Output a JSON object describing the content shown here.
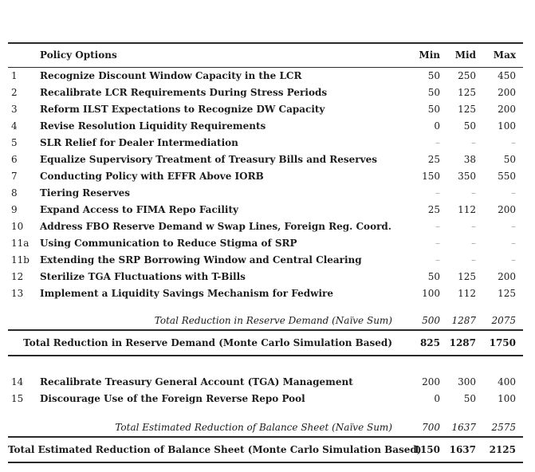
{
  "table": {
    "header": {
      "num": "",
      "label": "Policy Options",
      "min": "Min",
      "mid": "Mid",
      "max": "Max"
    },
    "empty_value": "–",
    "section1": {
      "rows": [
        {
          "num": "1",
          "label": "Recognize Discount Window Capacity in the LCR",
          "min": "50",
          "mid": "250",
          "max": "450"
        },
        {
          "num": "2",
          "label": "Recalibrate LCR Requirements During Stress Periods",
          "min": "50",
          "mid": "125",
          "max": "200"
        },
        {
          "num": "3",
          "label": "Reform ILST Expectations to Recognize DW Capacity",
          "min": "50",
          "mid": "125",
          "max": "200"
        },
        {
          "num": "4",
          "label": "Revise Resolution Liquidity Requirements",
          "min": "0",
          "mid": "50",
          "max": "100"
        },
        {
          "num": "5",
          "label": "SLR Relief for Dealer Intermediation",
          "min": "–",
          "mid": "–",
          "max": "–"
        },
        {
          "num": "6",
          "label": "Equalize Supervisory Treatment of Treasury Bills and Reserves",
          "min": "25",
          "mid": "38",
          "max": "50"
        },
        {
          "num": "7",
          "label": "Conducting Policy with EFFR Above IORB",
          "min": "150",
          "mid": "350",
          "max": "550"
        },
        {
          "num": "8",
          "label": "Tiering Reserves",
          "min": "–",
          "mid": "–",
          "max": "–"
        },
        {
          "num": "9",
          "label": "Expand Access to FIMA Repo Facility",
          "min": "25",
          "mid": "112",
          "max": "200"
        },
        {
          "num": "10",
          "label": "Address FBO Reserve Demand w Swap Lines, Foreign Reg. Coord.",
          "min": "–",
          "mid": "–",
          "max": "–"
        },
        {
          "num": "11a",
          "label": "Using Communication to Reduce Stigma of SRP",
          "min": "–",
          "mid": "–",
          "max": "–"
        },
        {
          "num": "11b",
          "label": "Extending the SRP Borrowing Window and Central Clearing",
          "min": "–",
          "mid": "–",
          "max": "–"
        },
        {
          "num": "12",
          "label": "Sterilize TGA Fluctuations with T-Bills",
          "min": "50",
          "mid": "125",
          "max": "200"
        },
        {
          "num": "13",
          "label": "Implement a Liquidity Savings Mechanism for Fedwire",
          "min": "100",
          "mid": "112",
          "max": "125"
        }
      ],
      "naive_total": {
        "label": "Total Reduction in Reserve Demand (Naïve Sum)",
        "min": "500",
        "mid": "1287",
        "max": "2075"
      },
      "monte_carlo_total": {
        "label": "Total Reduction in Reserve Demand (Monte Carlo Simulation Based)",
        "min": "825",
        "mid": "1287",
        "max": "1750"
      }
    },
    "section2": {
      "rows": [
        {
          "num": "14",
          "label": "Recalibrate Treasury General Account (TGA) Management",
          "min": "200",
          "mid": "300",
          "max": "400"
        },
        {
          "num": "15",
          "label": "Discourage Use of the Foreign Reverse Repo Pool",
          "min": "0",
          "mid": "50",
          "max": "100"
        }
      ],
      "naive_total": {
        "label": "Total Estimated Reduction of Balance Sheet (Naïve Sum)",
        "min": "700",
        "mid": "1637",
        "max": "2575"
      },
      "monte_carlo_total": {
        "label": "Total Estimated Reduction of Balance Sheet (Monte Carlo Simulation Based)",
        "min": "1150",
        "mid": "1637",
        "max": "2125"
      }
    }
  },
  "colors": {
    "background": "#ffffff",
    "text": "#1c1c1c",
    "rule": "#2a2a2a",
    "dash": "#a6a6a6"
  }
}
